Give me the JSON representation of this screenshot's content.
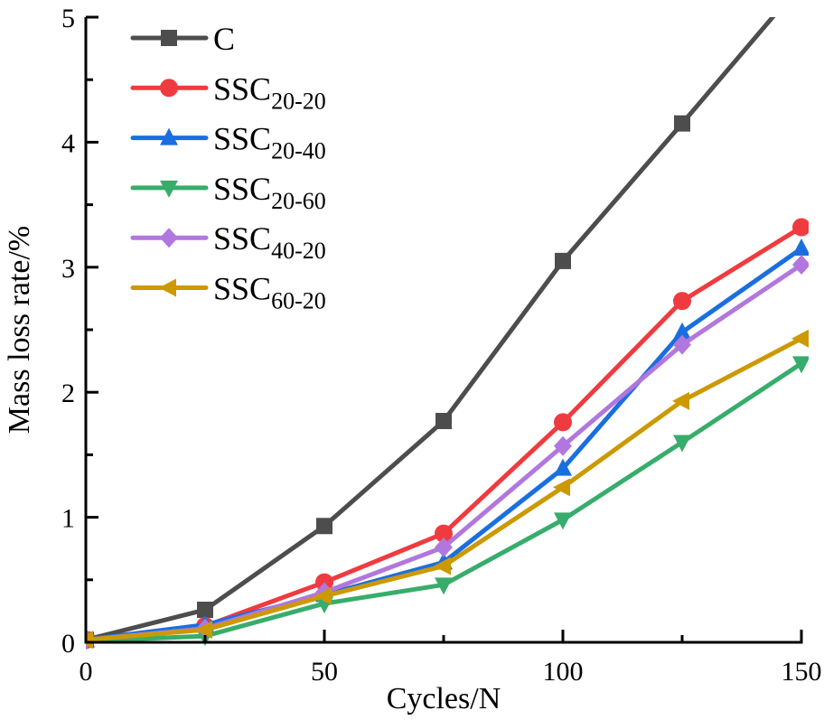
{
  "chart_data": {
    "type": "line",
    "title": "",
    "xlabel": "Cycles/N",
    "ylabel": "Mass loss rate/%",
    "xlim": [
      0,
      150
    ],
    "ylim": [
      0,
      5
    ],
    "xticks": [
      0,
      50,
      100,
      150
    ],
    "xminor": [
      25,
      75,
      125
    ],
    "yticks": [
      0,
      1,
      2,
      3,
      4,
      5
    ],
    "yminor": [
      0.5,
      1.5,
      2.5,
      3.5,
      4.5
    ],
    "grid": false,
    "legend_position": "top-left",
    "x": [
      0,
      25,
      50,
      75,
      100,
      125,
      150
    ],
    "series": [
      {
        "name": "C",
        "base": "C",
        "sub": "",
        "color": "#4d4d4d",
        "marker": "square",
        "values": [
          0.02,
          0.26,
          0.93,
          1.77,
          3.05,
          4.15,
          5.27
        ]
      },
      {
        "name": "SSC20-20",
        "base": "SSC",
        "sub": "20-20",
        "color": "#ef3b3f",
        "marker": "circle",
        "values": [
          0.02,
          0.13,
          0.48,
          0.87,
          1.76,
          2.73,
          3.32
        ]
      },
      {
        "name": "SSC20-40",
        "base": "SSC",
        "sub": "20-40",
        "color": "#1a6fdf",
        "marker": "triangle-up",
        "values": [
          0.02,
          0.14,
          0.38,
          0.64,
          1.39,
          2.48,
          3.15
        ]
      },
      {
        "name": "SSC20-60",
        "base": "SSC",
        "sub": "20-60",
        "color": "#37ad6b",
        "marker": "triangle-down",
        "values": [
          0.01,
          0.05,
          0.31,
          0.46,
          0.98,
          1.6,
          2.23
        ]
      },
      {
        "name": "SSC40-20",
        "base": "SSC",
        "sub": "40-20",
        "color": "#b177de",
        "marker": "diamond",
        "values": [
          0.02,
          0.11,
          0.4,
          0.76,
          1.57,
          2.38,
          3.02
        ]
      },
      {
        "name": "SSC60-20",
        "base": "SSC",
        "sub": "60-20",
        "color": "#cc9900",
        "marker": "triangle-left",
        "values": [
          0.02,
          0.1,
          0.37,
          0.61,
          1.24,
          1.93,
          2.43
        ]
      }
    ]
  }
}
